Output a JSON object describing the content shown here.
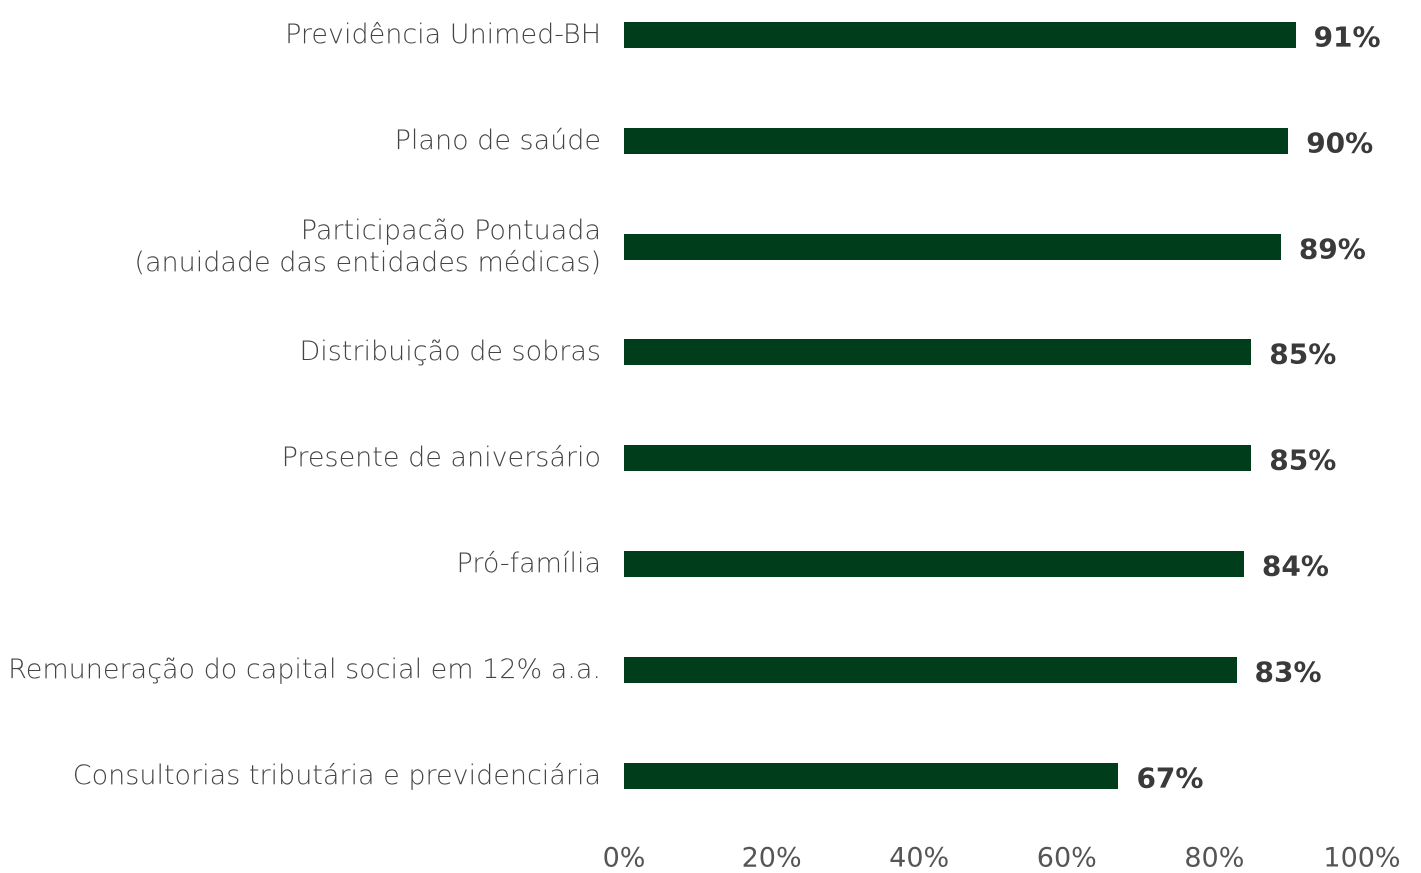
{
  "chart_data": {
    "type": "barh",
    "categories": [
      "Previdência Unimed-BH",
      "Plano de saúde",
      "Participacão Pontuada\n(anuidade das entidades médicas)",
      "Distribuição de sobras",
      "Presente de aniversário",
      "Pró-família",
      "Remuneração do capital social em 12% a.a.",
      "Consultorias tributária e previdenciária"
    ],
    "values": [
      91,
      90,
      89,
      85,
      85,
      84,
      83,
      67
    ],
    "value_labels": [
      "91%",
      "90%",
      "89%",
      "85%",
      "85%",
      "84%",
      "83%",
      "67%"
    ],
    "color": "#003d1b",
    "xlim": [
      0,
      100
    ],
    "xticks": [
      {
        "value": 0,
        "label": "0%"
      },
      {
        "value": 20,
        "label": "20%"
      },
      {
        "value": 40,
        "label": "40%"
      },
      {
        "value": 60,
        "label": "60%"
      },
      {
        "value": 80,
        "label": "80%"
      },
      {
        "value": 100,
        "label": "100%"
      }
    ],
    "grid": false
  }
}
